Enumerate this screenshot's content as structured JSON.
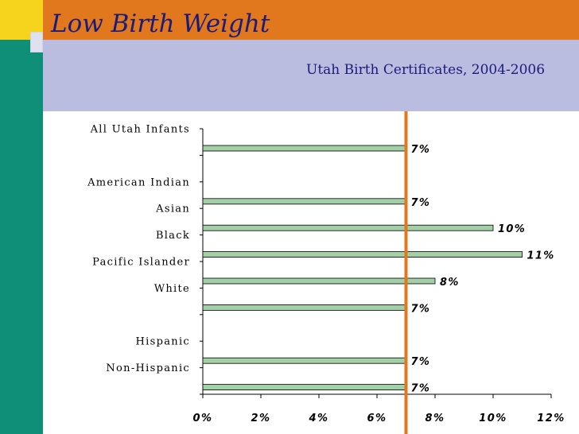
{
  "header": {
    "title": "Low Birth Weight",
    "subtitle": "Utah Birth Certificates, 2004-2006"
  },
  "colors": {
    "orange": "#e1781e",
    "band": "#babce0",
    "teal": "#0f8f78",
    "yellow": "#f6d31c",
    "bar_fill": "#a3cfa7",
    "reference_line": "#e1781e"
  },
  "chart_data": {
    "type": "bar",
    "orientation": "horizontal",
    "categories": [
      "All Utah Infants",
      "",
      "American Indian",
      "Asian",
      "Black",
      "Pacific Islander",
      "White",
      "",
      "Hispanic",
      "Non-Hispanic"
    ],
    "values": [
      7,
      null,
      7,
      10,
      11,
      8,
      7,
      null,
      7,
      7
    ],
    "value_labels": [
      "7%",
      "",
      "7%",
      "10%",
      "11%",
      "8%",
      "7%",
      "",
      "7%",
      "7%"
    ],
    "x_ticks": [
      "0%",
      "2%",
      "4%",
      "6%",
      "8%",
      "10%",
      "12%"
    ],
    "xlim": [
      0,
      12
    ],
    "reference_line": 7,
    "grid": false,
    "legend": "none"
  }
}
